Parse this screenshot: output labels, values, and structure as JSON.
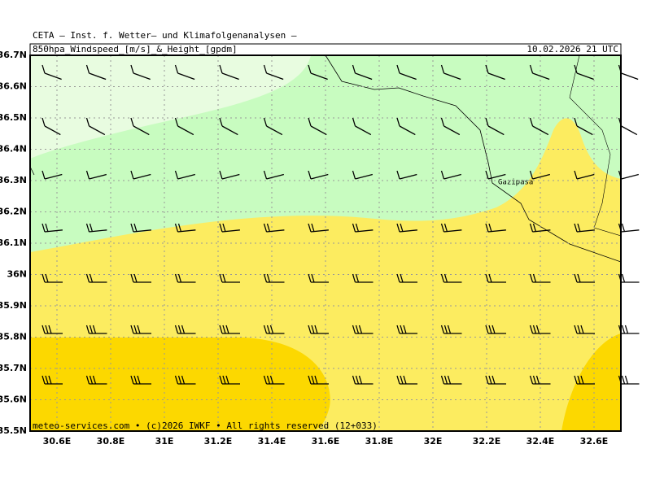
{
  "header": {
    "institute": "CETA – Inst. f. Wetter– und Klimafolgenanalysen –",
    "product": "850hpa_Windspeed_[m/s]_&_Height_[gpdm]",
    "valid_time": "10.02.2026 21 UTC"
  },
  "footer": "meteo-services.com • (c)2026 IWKF • All rights reserved (12+033)",
  "place_label": "Gazipasa",
  "lat_labels": [
    "36.7N",
    "36.6N",
    "36.5N",
    "36.4N",
    "36.3N",
    "36.2N",
    "36.1N",
    "36N",
    "35.9N",
    "35.8N",
    "35.7N",
    "35.6N",
    "35.5N"
  ],
  "lon_labels": [
    "30.6E",
    "30.8E",
    "31E",
    "31.2E",
    "31.4E",
    "31.6E",
    "31.8E",
    "32E",
    "32.2E",
    "32.4E",
    "32.6E"
  ]
}
